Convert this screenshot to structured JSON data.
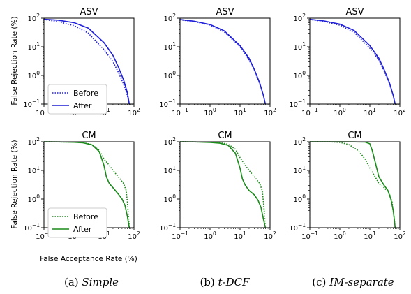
{
  "colors": {
    "asv": "#1f1fd6",
    "cm": "#1a8a1a"
  },
  "xlabel": "False Acceptance Rate (%)",
  "ylabel": "False Rejection Rate (%)",
  "captions": [
    {
      "label": "(a)",
      "name": "Simple"
    },
    {
      "label": "(b)",
      "name": "t-DCF"
    },
    {
      "label": "(c)",
      "name": "IM-separate"
    }
  ],
  "legend": {
    "before": "Before",
    "after": "After"
  },
  "tick_labels": [
    "10",
    "−1",
    "10",
    "0",
    "10",
    "1",
    "10",
    "2"
  ],
  "chart_data": [
    {
      "type": "line",
      "title": "ASV",
      "xscale": "log",
      "yscale": "log",
      "xlim": [
        0.1,
        100
      ],
      "ylim": [
        0.1,
        100
      ],
      "series": [
        {
          "name": "Before",
          "style": "dotted",
          "x": [
            0.1,
            0.3,
            1,
            3,
            10,
            20,
            30,
            45,
            60,
            70
          ],
          "y": [
            90,
            75,
            55,
            30,
            8,
            3,
            1.3,
            0.5,
            0.2,
            0.1
          ]
        },
        {
          "name": "After",
          "style": "solid",
          "x": [
            0.1,
            0.3,
            1,
            3,
            10,
            20,
            30,
            45,
            60,
            70
          ],
          "y": [
            92,
            85,
            70,
            45,
            14,
            5,
            2,
            0.7,
            0.25,
            0.1
          ]
        }
      ]
    },
    {
      "type": "line",
      "title": "ASV",
      "xscale": "log",
      "yscale": "log",
      "xlim": [
        0.1,
        100
      ],
      "ylim": [
        0.1,
        100
      ],
      "series": [
        {
          "name": "Before",
          "style": "dotted",
          "x": [
            0.1,
            0.3,
            1,
            3,
            10,
            20,
            30,
            45,
            60,
            70
          ],
          "y": [
            88,
            75,
            57,
            33,
            10,
            3.5,
            1.5,
            0.5,
            0.2,
            0.1
          ]
        },
        {
          "name": "After",
          "style": "solid",
          "x": [
            0.1,
            0.3,
            1,
            3,
            10,
            20,
            30,
            45,
            60,
            70
          ],
          "y": [
            90,
            78,
            60,
            36,
            11,
            4,
            1.6,
            0.55,
            0.2,
            0.1
          ]
        }
      ]
    },
    {
      "type": "line",
      "title": "ASV",
      "xscale": "log",
      "yscale": "log",
      "xlim": [
        0.1,
        100
      ],
      "ylim": [
        0.1,
        100
      ],
      "series": [
        {
          "name": "Before",
          "style": "dotted",
          "x": [
            0.1,
            0.3,
            1,
            3,
            10,
            20,
            30,
            45,
            60,
            70
          ],
          "y": [
            90,
            76,
            57,
            32,
            9,
            3.5,
            1.4,
            0.5,
            0.2,
            0.1
          ]
        },
        {
          "name": "After",
          "style": "solid",
          "x": [
            0.1,
            0.3,
            1,
            3,
            10,
            20,
            30,
            45,
            60,
            70
          ],
          "y": [
            91,
            80,
            62,
            37,
            11,
            4,
            1.6,
            0.55,
            0.2,
            0.1
          ]
        }
      ]
    },
    {
      "type": "line",
      "title": "CM",
      "xscale": "log",
      "yscale": "log",
      "xlim": [
        0.1,
        100
      ],
      "ylim": [
        0.1,
        100
      ],
      "series": [
        {
          "name": "Before",
          "style": "dotted",
          "x": [
            0.1,
            0.3,
            1,
            2,
            4,
            7,
            10,
            15,
            20,
            30,
            45,
            55,
            60,
            65,
            70
          ],
          "y": [
            100,
            99,
            97,
            93,
            80,
            50,
            25,
            15,
            10,
            6,
            3.5,
            2,
            0.8,
            0.3,
            0.1
          ]
        },
        {
          "name": "After",
          "style": "solid",
          "x": [
            0.1,
            0.3,
            1,
            2,
            4,
            7,
            10,
            12,
            15,
            20,
            30,
            40,
            50,
            60,
            70
          ],
          "y": [
            100,
            99,
            96,
            92,
            78,
            45,
            15,
            6,
            3.5,
            2.5,
            1.5,
            1,
            0.6,
            0.25,
            0.1
          ]
        }
      ]
    },
    {
      "type": "line",
      "title": "CM",
      "xscale": "log",
      "yscale": "log",
      "xlim": [
        0.1,
        100
      ],
      "ylim": [
        0.1,
        100
      ],
      "series": [
        {
          "name": "Before",
          "style": "dotted",
          "x": [
            0.1,
            0.3,
            1,
            2,
            4,
            7,
            10,
            15,
            20,
            30,
            45,
            55,
            60,
            65,
            70
          ],
          "y": [
            100,
            99,
            97,
            94,
            82,
            55,
            28,
            15,
            10,
            6,
            3.5,
            2,
            0.8,
            0.3,
            0.1
          ]
        },
        {
          "name": "After",
          "style": "solid",
          "x": [
            0.1,
            0.3,
            1,
            2,
            4,
            7,
            10,
            12,
            15,
            20,
            30,
            40,
            50,
            60,
            70
          ],
          "y": [
            100,
            99,
            95,
            90,
            75,
            40,
            12,
            5,
            3,
            2,
            1.4,
            0.9,
            0.5,
            0.2,
            0.1
          ]
        }
      ]
    },
    {
      "type": "line",
      "title": "CM",
      "xscale": "log",
      "yscale": "log",
      "xlim": [
        0.1,
        100
      ],
      "ylim": [
        0.1,
        100
      ],
      "series": [
        {
          "name": "Before",
          "style": "dotted",
          "x": [
            0.1,
            0.5,
            1,
            2,
            4,
            7,
            10,
            15,
            20,
            30,
            45,
            55,
            60,
            65,
            70
          ],
          "y": [
            100,
            99,
            95,
            80,
            50,
            25,
            12,
            6,
            3.5,
            2.5,
            1.5,
            0.8,
            0.4,
            0.2,
            0.1
          ]
        },
        {
          "name": "After",
          "style": "solid",
          "x": [
            0.1,
            1,
            3,
            7,
            10,
            12,
            15,
            20,
            30,
            40,
            50,
            60,
            65,
            70
          ],
          "y": [
            100,
            100,
            99,
            97,
            85,
            50,
            20,
            6,
            3,
            2,
            1,
            0.4,
            0.2,
            0.1
          ]
        }
      ]
    }
  ]
}
